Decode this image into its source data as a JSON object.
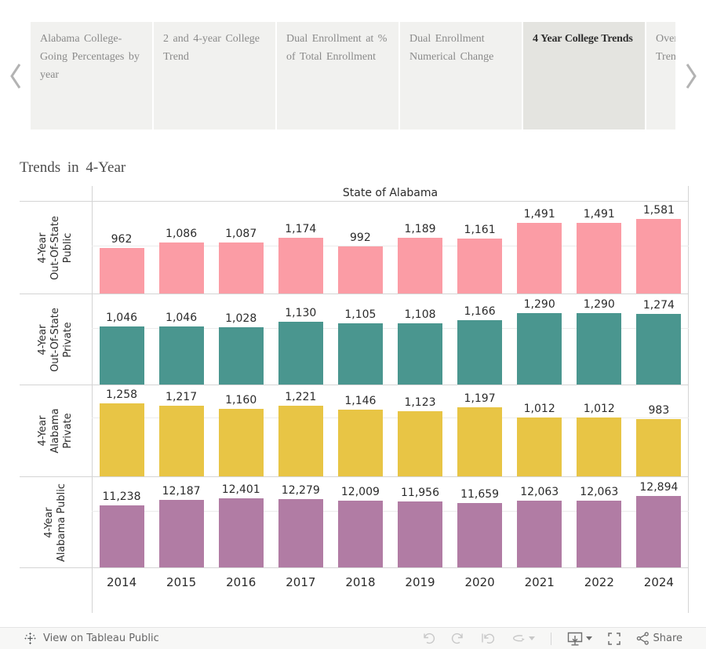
{
  "tab_bar": {
    "tabs": [
      {
        "label": "Alabama College-Going Percentages by year",
        "selected": false
      },
      {
        "label": "2 and 4-year College Trend",
        "selected": false
      },
      {
        "label": "Dual Enrollment at % of Total Enrollment",
        "selected": false
      },
      {
        "label": "Dual Enrollment Numerical Change",
        "selected": false
      },
      {
        "label": "4 Year College Trends",
        "selected": true
      },
      {
        "label": "Over\nTren",
        "selected": false
      }
    ]
  },
  "chart_data": {
    "type": "bar",
    "title": "Trends in 4-Year",
    "column_header": "State of Alabama",
    "x": [
      "2014",
      "2015",
      "2016",
      "2017",
      "2018",
      "2019",
      "2020",
      "2021",
      "2022",
      "2024"
    ],
    "layout_hints": {
      "faceted_rows": 4,
      "independent_y_scales": true,
      "value_labels": "above bars",
      "gridlines": "one faint line per row panel"
    },
    "series": [
      {
        "name": "4-Year Out-Of-State Public",
        "label_lines": [
          "4-Year",
          "Out-Of-State",
          "Public"
        ],
        "color": "#FB9CA5",
        "values": [
          962,
          1086,
          1087,
          1174,
          992,
          1189,
          1161,
          1491,
          1491,
          1581
        ],
        "gridline_value": 1000
      },
      {
        "name": "4-Year Out-Of-State Private",
        "label_lines": [
          "4-Year",
          "Out-Of-State",
          "Private"
        ],
        "color": "#4A968F",
        "values": [
          1046,
          1046,
          1028,
          1130,
          1105,
          1108,
          1166,
          1290,
          1290,
          1274
        ],
        "gridline_value": 1000
      },
      {
        "name": "4-Year Alabama Private",
        "label_lines": [
          "4-Year",
          "Alabama",
          "Private"
        ],
        "color": "#E8C545",
        "values": [
          1258,
          1217,
          1160,
          1221,
          1146,
          1123,
          1197,
          1012,
          1012,
          983
        ],
        "gridline_value": 1000
      },
      {
        "name": "4-Year Alabama Public",
        "label_lines": [
          "4-Year",
          "Alabama Public"
        ],
        "color": "#B17CA4",
        "values": [
          11238,
          12187,
          12401,
          12279,
          12009,
          11956,
          11659,
          12063,
          12063,
          12894
        ],
        "gridline_value": 10000
      }
    ]
  },
  "toolbar": {
    "view_on_label": "View on Tableau Public",
    "share_label": "Share"
  }
}
